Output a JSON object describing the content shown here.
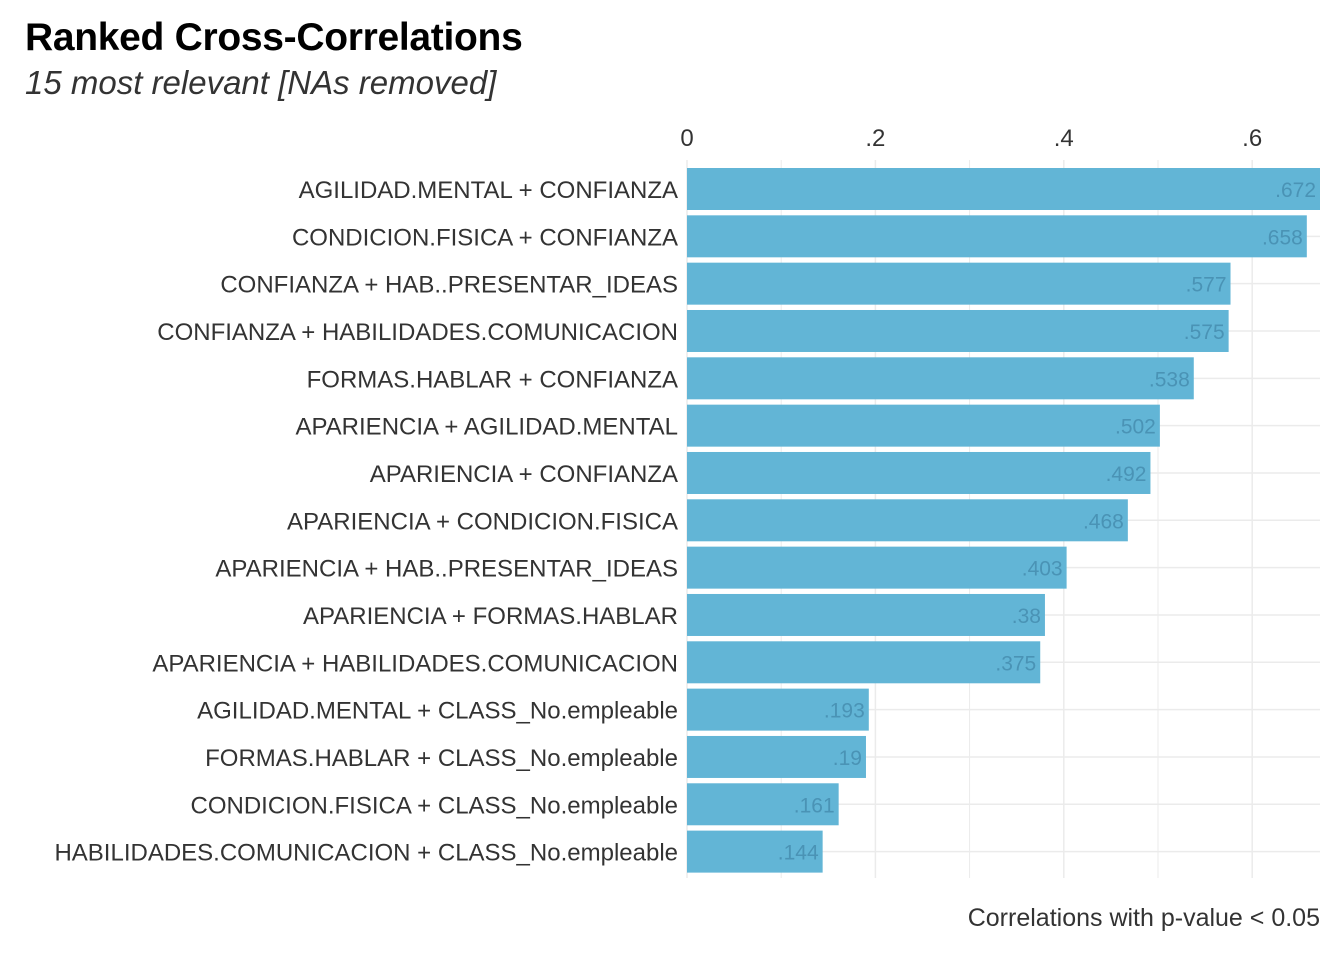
{
  "title": "Ranked Cross-Correlations",
  "subtitle": "15 most relevant [NAs removed]",
  "caption": "Correlations with p-value < 0.05",
  "colors": {
    "bar": "#62b5d6",
    "grid": "#ebebeb",
    "value_label": "#4a93b5",
    "text": "#333333"
  },
  "chart_data": {
    "type": "bar",
    "orientation": "horizontal",
    "categories": [
      "AGILIDAD.MENTAL + CONFIANZA",
      "CONDICION.FISICA + CONFIANZA",
      "CONFIANZA + HAB..PRESENTAR_IDEAS",
      "CONFIANZA + HABILIDADES.COMUNICACION",
      "FORMAS.HABLAR + CONFIANZA",
      "APARIENCIA + AGILIDAD.MENTAL",
      "APARIENCIA + CONFIANZA",
      "APARIENCIA + CONDICION.FISICA",
      "APARIENCIA + HAB..PRESENTAR_IDEAS",
      "APARIENCIA + FORMAS.HABLAR",
      "APARIENCIA + HABILIDADES.COMUNICACION",
      "AGILIDAD.MENTAL + CLASS_No.empleable",
      "FORMAS.HABLAR + CLASS_No.empleable",
      "CONDICION.FISICA + CLASS_No.empleable",
      "HABILIDADES.COMUNICACION + CLASS_No.empleable"
    ],
    "values": [
      0.672,
      0.658,
      0.577,
      0.575,
      0.538,
      0.502,
      0.492,
      0.468,
      0.403,
      0.38,
      0.375,
      0.193,
      0.19,
      0.161,
      0.144
    ],
    "value_labels": [
      ".672",
      ".658",
      ".577",
      ".575",
      ".538",
      ".502",
      ".492",
      ".468",
      ".403",
      ".38",
      ".375",
      ".193",
      ".19",
      ".161",
      ".144"
    ],
    "x_ticks": [
      0,
      0.2,
      0.4,
      0.6
    ],
    "x_tick_labels": [
      "0",
      ".2",
      ".4",
      ".6"
    ],
    "xlim": [
      0,
      0.672
    ],
    "x_axis_position": "top",
    "grid": true,
    "legend": "none"
  }
}
